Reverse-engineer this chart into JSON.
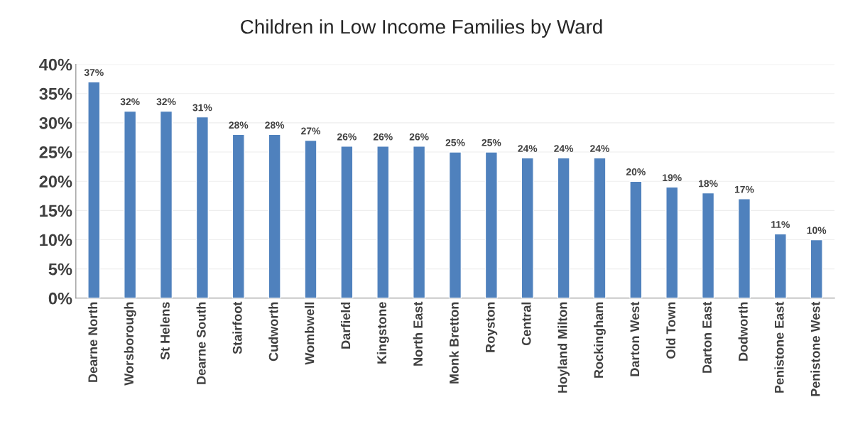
{
  "chart_data": {
    "type": "bar",
    "title": "Children in Low Income Families by Ward",
    "categories": [
      "Dearne North",
      "Worsborough",
      "St Helens",
      "Dearne South",
      "Stairfoot",
      "Cudworth",
      "Wombwell",
      "Darfield",
      "Kingstone",
      "North East",
      "Monk Bretton",
      "Royston",
      "Central",
      "Hoyland Milton",
      "Rockingham",
      "Darton West",
      "Old Town",
      "Darton East",
      "Dodworth",
      "Penistone East",
      "Penistone West"
    ],
    "values": [
      37,
      32,
      32,
      31,
      28,
      28,
      27,
      26,
      26,
      26,
      25,
      25,
      24,
      24,
      24,
      20,
      19,
      18,
      17,
      11,
      10
    ],
    "value_labels": [
      "37%",
      "32%",
      "32%",
      "31%",
      "28%",
      "28%",
      "27%",
      "26%",
      "26%",
      "26%",
      "25%",
      "25%",
      "24%",
      "24%",
      "24%",
      "20%",
      "19%",
      "18%",
      "17%",
      "11%",
      "10%"
    ],
    "color": "#4f81bd",
    "ylim": [
      0,
      40
    ],
    "yticks": [
      {
        "value": 0,
        "label": "0%"
      },
      {
        "value": 5,
        "label": "5%"
      },
      {
        "value": 10,
        "label": "10%"
      },
      {
        "value": 15,
        "label": "15%"
      },
      {
        "value": 20,
        "label": "20%"
      },
      {
        "value": 25,
        "label": "25%"
      },
      {
        "value": 30,
        "label": "30%"
      },
      {
        "value": 35,
        "label": "35%"
      },
      {
        "value": 40,
        "label": "40%"
      }
    ],
    "grid": "y"
  }
}
